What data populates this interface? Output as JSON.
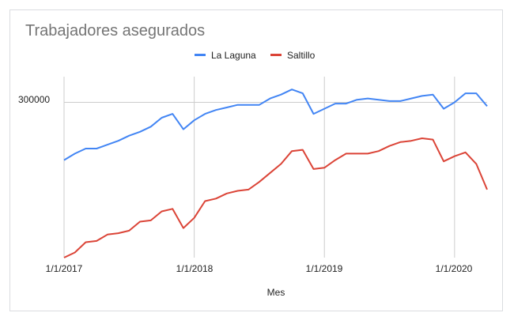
{
  "chart_data": {
    "type": "line",
    "title": "Trabajadores asegurados",
    "xlabel": "Mes",
    "ylabel": "",
    "x_ticks": [
      "1/1/2017",
      "1/1/2018",
      "1/1/2019",
      "1/1/2020"
    ],
    "y_ticks": [
      {
        "value": 300000,
        "label": "300000"
      }
    ],
    "ylim": [
      179000,
      320000
    ],
    "legend_position": "top",
    "gridlines": true,
    "colors": {
      "la_laguna": "#4285f4",
      "saltillo": "#db4437",
      "grid": "#cccccc"
    },
    "series": [
      {
        "name": "La Laguna",
        "values": [
          255000,
          260000,
          264000,
          264000,
          267000,
          270000,
          274000,
          277000,
          281000,
          288000,
          291000,
          279000,
          286000,
          291000,
          294000,
          296000,
          298000,
          298000,
          298000,
          303000,
          306000,
          310000,
          307000,
          291000,
          295000,
          299000,
          299000,
          302000,
          303000,
          302000,
          301000,
          301000,
          303000,
          305000,
          306000,
          295000,
          300000,
          307000,
          307000,
          297000
        ]
      },
      {
        "name": "Saltillo",
        "values": [
          179000,
          183000,
          191000,
          192000,
          197000,
          198000,
          200000,
          207000,
          208000,
          215000,
          217000,
          202000,
          210000,
          223000,
          225000,
          229000,
          231000,
          232000,
          238000,
          245000,
          252000,
          262000,
          263000,
          248000,
          249000,
          255000,
          260000,
          260000,
          260000,
          262000,
          266000,
          269000,
          270000,
          272000,
          271000,
          254000,
          258000,
          261000,
          252000,
          232000
        ]
      }
    ]
  }
}
